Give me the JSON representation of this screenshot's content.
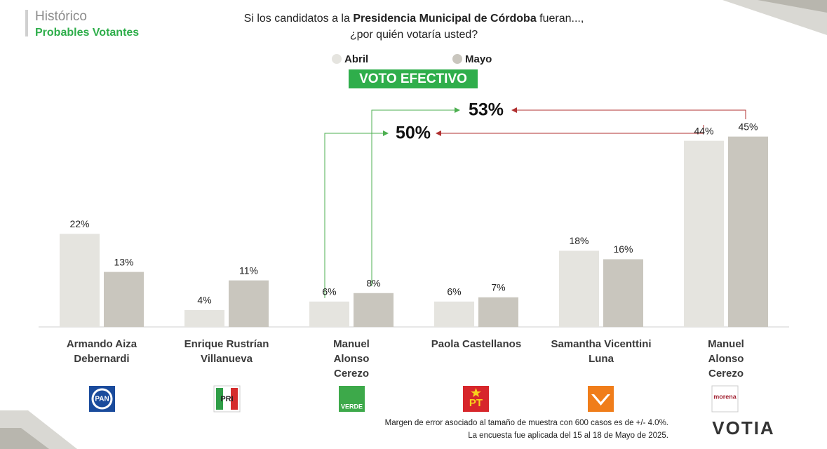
{
  "header": {
    "title": "Histórico",
    "subtitle": "Probables Votantes"
  },
  "chart_data": {
    "type": "bar",
    "title_parts": [
      "Si los candidatos a la ",
      "Presidencia Municipal de Córdoba",
      " fueran...,"
    ],
    "subtitle": "¿por quién votaría usted?",
    "badge": "VOTO EFECTIVO",
    "categories": [
      "Armando Aiza\nDebernardi",
      "Enrique Rustrían\nVillanueva",
      "Manuel\nAlonso\nCerezo",
      "Paola Castellanos",
      "Samantha Vicenttini\nLuna",
      "Manuel\nAlonso\nCerezo"
    ],
    "series": [
      {
        "name": "Abril",
        "color": "#e5e4df",
        "values": [
          22,
          4,
          6,
          6,
          18,
          44
        ],
        "value_labels": [
          "22%",
          "4%",
          "6%",
          "6%",
          "18%",
          "44%"
        ]
      },
      {
        "name": "Mayo",
        "color": "#c9c6be",
        "values": [
          13,
          11,
          8,
          7,
          16,
          45
        ],
        "value_labels": [
          "13%",
          "11%",
          "8%",
          "7%",
          "16%",
          "45%"
        ]
      }
    ],
    "annotations": [
      "53%",
      "50%"
    ]
  },
  "party_logos": [
    "PAN",
    "PRI",
    "VERDE",
    "PT",
    null,
    "morena"
  ],
  "footnotes": [
    "Margen de error asociado al tamaño de muestra con 600 casos es de +/- 4.0%.",
    "La encuesta fue aplicada del 15 al 18 de Mayo de 2025."
  ],
  "brand": "VOTIA"
}
